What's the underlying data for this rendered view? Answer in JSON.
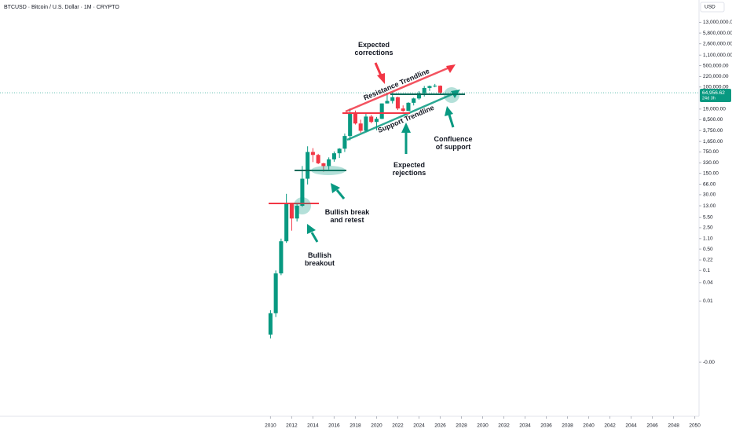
{
  "chart_data": {
    "type": "candlestick",
    "title": "BTCUSD · Bitcoin / U.S. Dollar · 1M · CRYPTO",
    "currency": "USD",
    "log_scale": true,
    "up_color": "#089981",
    "down_color": "#f23645",
    "xlim": [
      1984.5,
      2050.4
    ],
    "xticks": [
      2010,
      2012,
      2014,
      2016,
      2018,
      2020,
      2022,
      2024,
      2026,
      2028,
      2030,
      2032,
      2034,
      2036,
      2038,
      2040,
      2042,
      2044,
      2046,
      2048,
      2050
    ],
    "ylim": [
      1.7e-06,
      70000000
    ],
    "yticks": [
      {
        "value": 13000000,
        "label": "13,000,000.00"
      },
      {
        "value": 5800000,
        "label": "5,800,000.00"
      },
      {
        "value": 2600000,
        "label": "2,600,000.00"
      },
      {
        "value": 1100000,
        "label": "1,100,000.00"
      },
      {
        "value": 500000,
        "label": "500,000.00"
      },
      {
        "value": 220000,
        "label": "220,000.00"
      },
      {
        "value": 100000,
        "label": "100,000.00"
      },
      {
        "value": 19000,
        "label": "19,000.00"
      },
      {
        "value": 8500,
        "label": "8,500.00"
      },
      {
        "value": 3750,
        "label": "3,750.00"
      },
      {
        "value": 1650,
        "label": "1,650.00"
      },
      {
        "value": 750,
        "label": "750.00"
      },
      {
        "value": 330,
        "label": "330.00"
      },
      {
        "value": 150,
        "label": "150.00"
      },
      {
        "value": 66,
        "label": "66.00"
      },
      {
        "value": 30,
        "label": "30.00"
      },
      {
        "value": 13,
        "label": "13.00"
      },
      {
        "value": 5.5,
        "label": "5.50"
      },
      {
        "value": 2.5,
        "label": "2.50"
      },
      {
        "value": 1.1,
        "label": "1.10"
      },
      {
        "value": 0.5,
        "label": "0.50"
      },
      0.22,
      0.1,
      0.04,
      0.01,
      {
        "value": 0.0001,
        "label": "-0.00"
      }
    ],
    "x": [
      2010.0,
      2010.5,
      2011.0,
      2011.5,
      2012.0,
      2012.5,
      2013.0,
      2013.5,
      2014.0,
      2014.5,
      2015.0,
      2015.5,
      2016.0,
      2016.5,
      2017.0,
      2017.5,
      2018.0,
      2018.5,
      2019.0,
      2019.5,
      2020.0,
      2020.5,
      2021.0,
      2021.5,
      2022.0,
      2022.5,
      2023.0,
      2023.5,
      2024.0,
      2024.5,
      2025.0,
      2025.5,
      2026.0
    ],
    "open": [
      0.0008,
      0.004,
      0.08,
      0.9,
      15,
      5,
      13,
      100,
      750,
      600,
      320,
      260,
      430,
      680,
      960,
      2500,
      13800,
      6400,
      3700,
      10800,
      7200,
      9100,
      29000,
      35000,
      46300,
      19800,
      16500,
      30400,
      42200,
      62700,
      93400,
      107000,
      110000
    ],
    "high": [
      0.005,
      0.1,
      1.1,
      32,
      16,
      15,
      260,
      1150,
      1000,
      650,
      330,
      500,
      780,
      1000,
      3000,
      19800,
      17000,
      8500,
      13800,
      12300,
      10500,
      29000,
      64800,
      69000,
      48000,
      25000,
      31800,
      44700,
      73800,
      108000,
      112000,
      126000,
      112000
    ],
    "low": [
      0.0006,
      0.003,
      0.07,
      0.8,
      2,
      4,
      12,
      65,
      350,
      300,
      170,
      200,
      360,
      480,
      750,
      1800,
      5900,
      3200,
      3400,
      6500,
      3800,
      8900,
      29000,
      29000,
      17600,
      15500,
      16500,
      24900,
      38500,
      49000,
      74400,
      98000,
      60000
    ],
    "close": [
      0.004,
      0.08,
      0.9,
      15,
      5,
      13,
      100,
      750,
      600,
      320,
      260,
      430,
      680,
      960,
      2500,
      13800,
      6400,
      3700,
      10800,
      7200,
      9100,
      29000,
      35000,
      46300,
      19800,
      16500,
      30400,
      42200,
      62700,
      93400,
      107000,
      110000,
      64956.62
    ],
    "last_price": {
      "value": 64956.62,
      "label": "64,956.62"
    },
    "countdown": "24d 3h",
    "annotations": {
      "corrections": [
        "Expected",
        "corrections"
      ],
      "resistance": "Resistance Trendline",
      "support": "Support Trendline",
      "rejections": [
        "Expected",
        "rejections"
      ],
      "confluence": [
        "Confluence",
        "of support"
      ],
      "retest": [
        "Bullish break",
        "and retest"
      ],
      "breakout": [
        "Bullish",
        "breakout"
      ]
    }
  }
}
